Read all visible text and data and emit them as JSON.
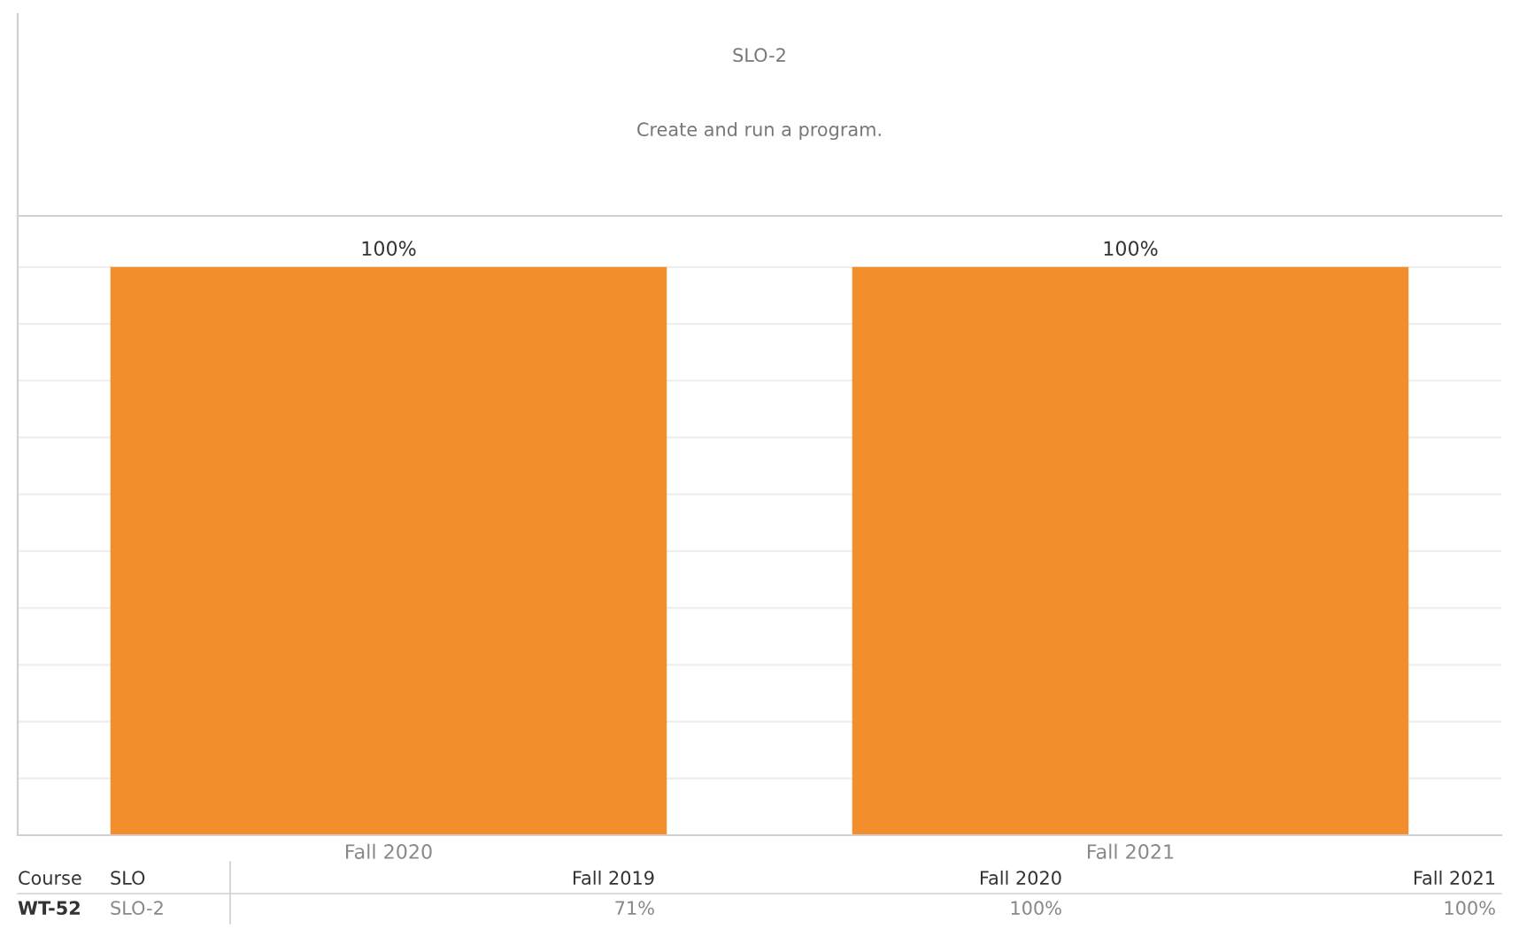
{
  "chart_data": {
    "type": "bar",
    "title": "SLO-2",
    "subtitle": "Create and run a program.",
    "categories": [
      "Fall 2020",
      "Fall 2021"
    ],
    "series": [
      {
        "color": "#f28e2b",
        "values": [
          100,
          100
        ],
        "value_labels": [
          "100%",
          "100%"
        ]
      }
    ],
    "ylim": [
      0,
      109
    ],
    "yticks": [
      0,
      10,
      20,
      30,
      40,
      50,
      60,
      70,
      80,
      90,
      100
    ],
    "tick_labels": "x",
    "grid": "y",
    "legend": false,
    "annotations": [
      "Course",
      "SLO",
      "Fall 2019",
      "Fall 2020",
      "Fall 2021",
      "WT-52",
      "SLO-2",
      "71%",
      "100%",
      "100%"
    ]
  }
}
